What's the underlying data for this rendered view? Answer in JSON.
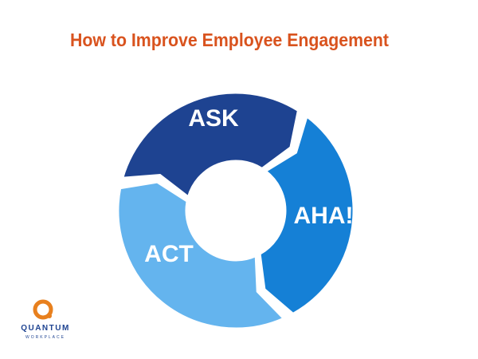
{
  "title": "How to Improve Employee Engagement",
  "cycle": {
    "segments": [
      {
        "label": "ASK"
      },
      {
        "label": "AHA!"
      },
      {
        "label": "ACT"
      }
    ]
  },
  "logo": {
    "name": "QUANTUM",
    "tagline": "WORKPLACE"
  }
}
